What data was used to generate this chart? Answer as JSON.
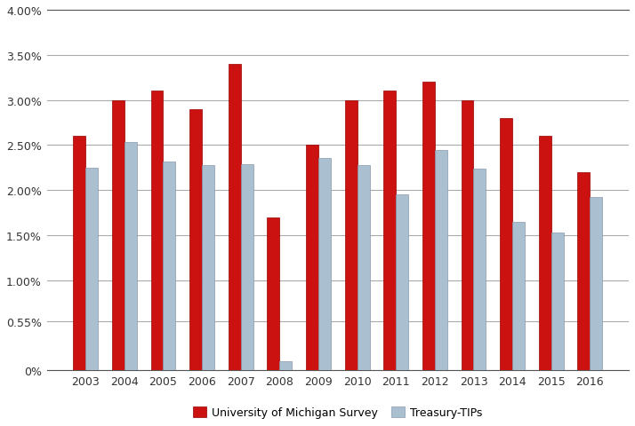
{
  "years": [
    2003,
    2004,
    2005,
    2006,
    2007,
    2008,
    2009,
    2010,
    2011,
    2012,
    2013,
    2014,
    2015,
    2016
  ],
  "michigan_survey": [
    0.026,
    0.03,
    0.031,
    0.029,
    0.034,
    0.017,
    0.025,
    0.03,
    0.031,
    0.032,
    0.03,
    0.028,
    0.026,
    0.022
  ],
  "treasury_tips": [
    0.0225,
    0.0253,
    0.0232,
    0.0228,
    0.0229,
    0.001,
    0.0236,
    0.0228,
    0.0195,
    0.0244,
    0.0224,
    0.0165,
    0.0153,
    0.0192
  ],
  "bar_color_michigan": "#CC1111",
  "bar_color_treasury": "#AABFCF",
  "bar_edgecolor_michigan": "#990000",
  "bar_edgecolor_treasury": "#8899AA",
  "ylim": [
    0,
    0.04
  ],
  "yticks": [
    0.0,
    0.0055,
    0.01,
    0.015,
    0.02,
    0.025,
    0.03,
    0.035,
    0.04
  ],
  "ytick_labels": [
    "0%",
    "0.55%",
    "1.00%",
    "1.50%",
    "2.00%",
    "2.50%",
    "3.00%",
    "3.50%",
    "4.00%"
  ],
  "legend_michigan": "University of Michigan Survey",
  "legend_treasury": "Treasury-TIPs",
  "background_color": "#FFFFFF",
  "grid_color": "#AAAAAA",
  "bar_width": 0.32,
  "figsize": [
    7.14,
    4.81
  ],
  "dpi": 100
}
